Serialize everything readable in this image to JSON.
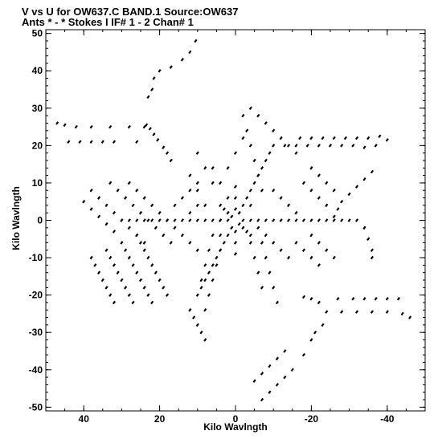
{
  "chart_data": {
    "type": "scatter",
    "title": "V vs U for OW637.C BAND.1   Source:OW637",
    "subtitle": "Ants * - *    Stokes I   IF# 1 - 2   Chan# 1",
    "xlabel": "Kilo Wavlngth",
    "ylabel": "Kilo Wavlngth",
    "xlim": [
      50,
      -50
    ],
    "ylim": [
      -51,
      51
    ],
    "x_direction": "reversed",
    "xticks": [
      40,
      20,
      0,
      -20,
      -40
    ],
    "xtick_labels": [
      "40",
      "20",
      "0",
      "-20",
      "-40"
    ],
    "yticks": [
      50,
      40,
      30,
      20,
      10,
      0,
      -10,
      -20,
      -30,
      -40,
      -50
    ],
    "ytick_labels": [
      "50",
      "40",
      "30",
      "20",
      "10",
      "0",
      "-10",
      "-20",
      "-30",
      "-40",
      "-50"
    ],
    "grid": false,
    "legend": "none",
    "marker_color": "#000000",
    "series": [
      {
        "values": [
          [
            47,
            26
          ],
          [
            45,
            25.5
          ],
          [
            42,
            25
          ],
          [
            38,
            25
          ],
          [
            33,
            25
          ],
          [
            28,
            25
          ],
          [
            24,
            25
          ],
          [
            44,
            21
          ],
          [
            41,
            21
          ],
          [
            38,
            21
          ],
          [
            35,
            21
          ],
          [
            32,
            21
          ],
          [
            26,
            21
          ],
          [
            23.5,
            25.5
          ],
          [
            22.5,
            24.5
          ],
          [
            21.5,
            23
          ],
          [
            20.5,
            21.5
          ],
          [
            19,
            19.5
          ],
          [
            18,
            18
          ],
          [
            17,
            16
          ],
          [
            23,
            33
          ],
          [
            22,
            35
          ],
          [
            21.5,
            38
          ],
          [
            20,
            40
          ],
          [
            17,
            41
          ],
          [
            14,
            43
          ],
          [
            12,
            45
          ],
          [
            10.5,
            48
          ],
          [
            -40,
            21.5
          ],
          [
            -37,
            20
          ],
          [
            -34,
            19.5
          ],
          [
            -31,
            20
          ],
          [
            -28,
            20
          ],
          [
            -25,
            20
          ],
          [
            -22,
            20
          ],
          [
            -19,
            20
          ],
          [
            -16,
            20
          ],
          [
            -13,
            20
          ],
          [
            -38,
            22.5
          ],
          [
            -35,
            22
          ],
          [
            -32,
            22
          ],
          [
            -29,
            22
          ],
          [
            -26,
            22
          ],
          [
            -23,
            22
          ],
          [
            -20,
            22
          ],
          [
            -17,
            22
          ],
          [
            -36,
            13
          ],
          [
            -34,
            11
          ],
          [
            -32,
            9
          ],
          [
            -30,
            7
          ],
          [
            -28,
            5
          ],
          [
            -27,
            3
          ],
          [
            -26,
            1
          ],
          [
            -34,
            -2
          ],
          [
            -35,
            -5
          ],
          [
            -36,
            -8
          ],
          [
            -36,
            -10
          ],
          [
            -46,
            -26
          ],
          [
            -44,
            -25
          ],
          [
            -40,
            -24.5
          ],
          [
            -36,
            -24.5
          ],
          [
            -32,
            -24.5
          ],
          [
            -28,
            -24.5
          ],
          [
            -24,
            -24.5
          ],
          [
            -43,
            -21
          ],
          [
            -40,
            -21
          ],
          [
            -37,
            -21
          ],
          [
            -34,
            -21
          ],
          [
            -31,
            -21
          ],
          [
            -27,
            -21
          ],
          [
            -22,
            -22
          ],
          [
            -20,
            -21
          ],
          [
            -18,
            -20.5
          ],
          [
            -23,
            -28
          ],
          [
            -21,
            -30
          ],
          [
            -20,
            -32
          ],
          [
            -18,
            -36
          ],
          [
            -15,
            -40
          ],
          [
            -13,
            -42
          ],
          [
            -11,
            -44
          ],
          [
            -9,
            -46
          ],
          [
            -7,
            -48
          ],
          [
            -13,
            -35
          ],
          [
            -11,
            -37
          ],
          [
            -9,
            -39
          ],
          [
            -7,
            -41
          ],
          [
            -5,
            -43
          ],
          [
            28,
            10
          ],
          [
            26,
            8
          ],
          [
            24,
            6
          ],
          [
            22,
            4
          ],
          [
            20,
            2
          ],
          [
            18,
            0
          ],
          [
            16,
            -2
          ],
          [
            14,
            -4
          ],
          [
            12,
            -6
          ],
          [
            10,
            -8
          ],
          [
            33,
            10
          ],
          [
            31,
            8
          ],
          [
            29,
            6
          ],
          [
            27,
            4
          ],
          [
            25,
            2
          ],
          [
            23,
            0
          ],
          [
            21,
            -2
          ],
          [
            19,
            -4
          ],
          [
            17,
            -6
          ],
          [
            38,
            8
          ],
          [
            36,
            6
          ],
          [
            34,
            4
          ],
          [
            32,
            2
          ],
          [
            30,
            0
          ],
          [
            28,
            -2
          ],
          [
            26,
            -4
          ],
          [
            24,
            -6
          ],
          [
            40,
            5
          ],
          [
            38,
            3
          ],
          [
            36,
            1
          ],
          [
            34,
            -1
          ],
          [
            32,
            -3
          ],
          [
            30,
            0
          ],
          [
            28,
            0
          ],
          [
            26,
            0
          ],
          [
            24,
            0
          ],
          [
            22,
            0
          ],
          [
            20,
            0
          ],
          [
            18,
            0
          ],
          [
            16,
            0
          ],
          [
            14,
            0
          ],
          [
            12,
            0
          ],
          [
            10,
            0
          ],
          [
            8,
            0
          ],
          [
            6,
            0
          ],
          [
            4,
            0
          ],
          [
            2,
            0
          ],
          [
            -2,
            0
          ],
          [
            -4,
            0
          ],
          [
            -6,
            0
          ],
          [
            -8,
            0
          ],
          [
            -10,
            0
          ],
          [
            -12,
            0
          ],
          [
            -14,
            0
          ],
          [
            -16,
            0
          ],
          [
            -18,
            0
          ],
          [
            -20,
            0
          ],
          [
            -22,
            0
          ],
          [
            -24,
            0
          ],
          [
            -26,
            0
          ],
          [
            -28,
            0
          ],
          [
            -30,
            0
          ],
          [
            -32,
            0
          ],
          [
            38,
            -10
          ],
          [
            37,
            -12
          ],
          [
            36,
            -14
          ],
          [
            35,
            -16
          ],
          [
            34,
            -18
          ],
          [
            33,
            -20
          ],
          [
            32,
            -22
          ],
          [
            34,
            -8
          ],
          [
            33,
            -10
          ],
          [
            32,
            -12
          ],
          [
            31,
            -14
          ],
          [
            30,
            -16
          ],
          [
            29,
            -18
          ],
          [
            28,
            -20
          ],
          [
            27,
            -22
          ],
          [
            30,
            -6
          ],
          [
            29,
            -8
          ],
          [
            28,
            -10
          ],
          [
            27,
            -12
          ],
          [
            26,
            -14
          ],
          [
            25,
            -16
          ],
          [
            24,
            -18
          ],
          [
            23,
            -20
          ],
          [
            22,
            -22
          ],
          [
            26,
            -4
          ],
          [
            25,
            -6
          ],
          [
            24,
            -8
          ],
          [
            23,
            -10
          ],
          [
            22,
            -12
          ],
          [
            21,
            -14
          ],
          [
            20,
            -16
          ],
          [
            19,
            -18
          ],
          [
            18,
            -20
          ],
          [
            12,
            -24
          ],
          [
            11,
            -26
          ],
          [
            10,
            -28
          ],
          [
            9,
            -30
          ],
          [
            8,
            -32
          ],
          [
            -4,
            30
          ],
          [
            -6,
            28
          ],
          [
            -8,
            26
          ],
          [
            -10,
            24
          ],
          [
            -12,
            22
          ],
          [
            -14,
            20
          ],
          [
            -16,
            18
          ],
          [
            -2,
            28
          ],
          [
            -3,
            24
          ],
          [
            -4,
            20
          ],
          [
            -5,
            16
          ],
          [
            -6,
            12
          ],
          [
            -7,
            8
          ],
          [
            -10,
            8
          ],
          [
            -12,
            6
          ],
          [
            -14,
            4
          ],
          [
            -16,
            2
          ],
          [
            -6,
            -2
          ],
          [
            -7,
            -6
          ],
          [
            -8,
            -10
          ],
          [
            -9,
            -14
          ],
          [
            -10,
            -18
          ],
          [
            -11,
            -22
          ],
          [
            -4,
            -6
          ],
          [
            -5,
            -10
          ],
          [
            -6,
            -14
          ],
          [
            -7,
            -18
          ],
          [
            6,
            -4
          ],
          [
            7,
            -8
          ],
          [
            8,
            -12
          ],
          [
            9,
            -16
          ],
          [
            10,
            -20
          ],
          [
            4,
            -8
          ],
          [
            5,
            -12
          ],
          [
            6,
            -16
          ],
          [
            7,
            -20
          ],
          [
            8,
            -24
          ],
          [
            2,
            6
          ],
          [
            4,
            10
          ],
          [
            6,
            14
          ],
          [
            2,
            14
          ],
          [
            0,
            18
          ],
          [
            -2,
            22
          ],
          [
            8,
            4
          ],
          [
            10,
            8
          ],
          [
            12,
            12
          ],
          [
            6,
            10
          ],
          [
            8,
            14
          ],
          [
            10,
            18
          ],
          [
            -20,
            14
          ],
          [
            -22,
            12
          ],
          [
            -24,
            10
          ],
          [
            -26,
            8
          ],
          [
            -18,
            10
          ],
          [
            -20,
            8
          ],
          [
            -22,
            6
          ],
          [
            -24,
            4
          ],
          [
            -20,
            -4
          ],
          [
            -22,
            -6
          ],
          [
            -24,
            -8
          ],
          [
            -26,
            -10
          ],
          [
            -16,
            -6
          ],
          [
            -18,
            -8
          ],
          [
            -20,
            -10
          ],
          [
            -22,
            -12
          ],
          [
            -8,
            -4
          ],
          [
            -10,
            -6
          ],
          [
            -12,
            -8
          ],
          [
            -14,
            -10
          ],
          [
            16,
            4
          ],
          [
            14,
            6
          ],
          [
            12,
            8
          ],
          [
            10,
            10
          ],
          [
            12,
            2
          ],
          [
            10,
            4
          ],
          [
            -1,
            2
          ],
          [
            -2,
            4
          ],
          [
            -3,
            6
          ],
          [
            -4,
            8
          ],
          [
            -5,
            10
          ],
          [
            -6,
            12
          ],
          [
            -7,
            14
          ],
          [
            -8,
            16
          ],
          [
            -9,
            18
          ],
          [
            -10,
            20
          ],
          [
            1,
            -2
          ],
          [
            2,
            -4
          ],
          [
            3,
            -6
          ],
          [
            4,
            -8
          ],
          [
            5,
            -10
          ],
          [
            6,
            -12
          ],
          [
            7,
            -14
          ],
          [
            8,
            -16
          ],
          [
            9,
            -18
          ],
          [
            1,
            1
          ],
          [
            2,
            2
          ],
          [
            3,
            3
          ],
          [
            -1,
            -1
          ],
          [
            -2,
            -2
          ],
          [
            -3,
            -3
          ],
          [
            0,
            3
          ],
          [
            0,
            6
          ],
          [
            0,
            9
          ],
          [
            0,
            -3
          ],
          [
            0,
            -6
          ],
          [
            0,
            -9
          ],
          [
            4,
            0
          ],
          [
            4,
            4
          ],
          [
            -4,
            4
          ],
          [
            -4,
            -4
          ],
          [
            4,
            -4
          ]
        ]
      }
    ]
  }
}
